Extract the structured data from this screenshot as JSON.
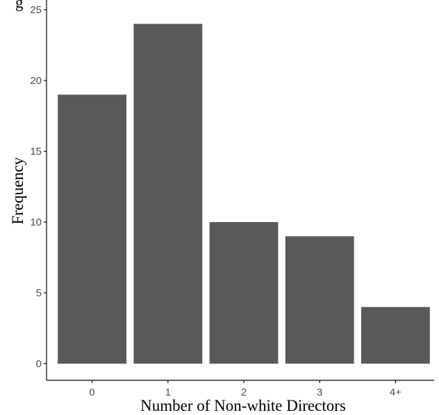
{
  "chart_data": {
    "type": "bar",
    "title": "g",
    "categories": [
      "0",
      "1",
      "2",
      "3",
      "4+"
    ],
    "values": [
      19,
      24,
      10,
      9,
      4
    ],
    "xlabel": "Number of Non-white Directors",
    "ylabel": "Frequency",
    "ylim": [
      0,
      25
    ],
    "yticks": [
      0,
      5,
      10,
      15,
      20,
      25
    ],
    "grid": false,
    "legend": "none",
    "colors": {
      "bar": "#595959",
      "axis": "#000000",
      "tick_text": "#4d4d4d"
    }
  }
}
